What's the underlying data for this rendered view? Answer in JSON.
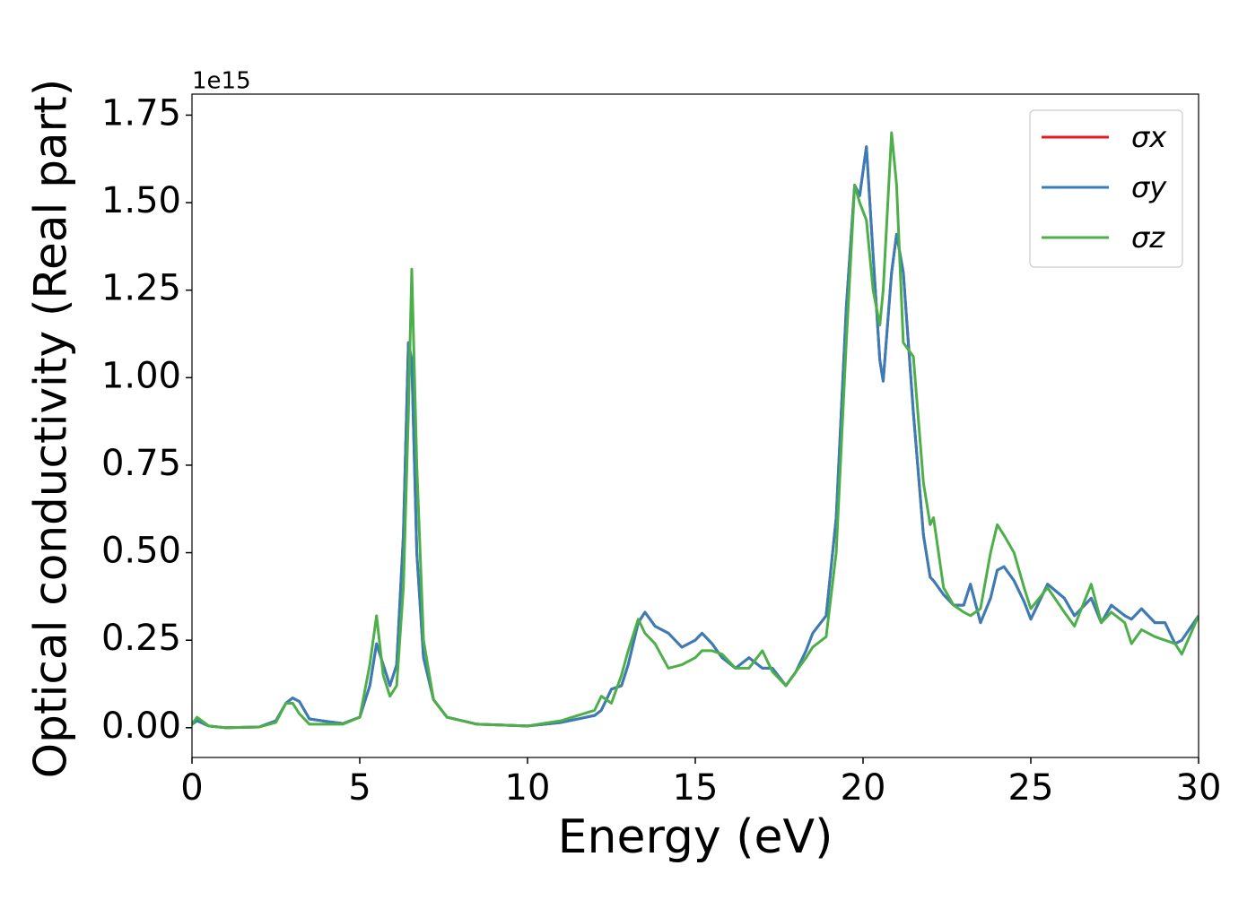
{
  "chart_data": {
    "type": "line",
    "xlabel": "Energy (eV)",
    "ylabel": "Optical conductivity (Real part)",
    "offset_label": "1e15",
    "x": [
      0,
      0.15,
      0.5,
      1,
      2,
      2.5,
      2.8,
      3.0,
      3.2,
      3.5,
      4.0,
      4.5,
      5.0,
      5.3,
      5.5,
      5.7,
      5.9,
      6.1,
      6.3,
      6.45,
      6.55,
      6.7,
      6.9,
      7.2,
      7.6,
      8.5,
      10,
      11,
      11.5,
      12,
      12.2,
      12.5,
      12.8,
      13.0,
      13.3,
      13.5,
      13.8,
      14.2,
      14.6,
      15.0,
      15.2,
      15.5,
      15.8,
      16.2,
      16.6,
      17.0,
      17.3,
      17.7,
      18.0,
      18.3,
      18.5,
      18.9,
      19.2,
      19.5,
      19.75,
      19.9,
      20.1,
      20.3,
      20.5,
      20.6,
      20.85,
      21.0,
      21.2,
      21.5,
      21.8,
      22.0,
      22.1,
      22.4,
      22.7,
      23.0,
      23.2,
      23.5,
      23.8,
      24.0,
      24.2,
      24.5,
      24.8,
      25.0,
      25.5,
      26.0,
      26.3,
      26.8,
      27.1,
      27.4,
      27.8,
      28.0,
      28.3,
      28.7,
      29.0,
      29.3,
      29.5,
      30
    ],
    "series": [
      {
        "name": "σx",
        "color": "#e41a1c",
        "values": [
          0.01,
          0.02,
          0.005,
          0,
          0.002,
          0.02,
          0.07,
          0.085,
          0.075,
          0.025,
          0.018,
          0.012,
          0.03,
          0.12,
          0.24,
          0.18,
          0.12,
          0.18,
          0.55,
          1.1,
          1.05,
          0.5,
          0.2,
          0.08,
          0.03,
          0.01,
          0.005,
          0.015,
          0.025,
          0.035,
          0.05,
          0.11,
          0.12,
          0.18,
          0.3,
          0.33,
          0.29,
          0.27,
          0.23,
          0.25,
          0.27,
          0.24,
          0.2,
          0.17,
          0.2,
          0.17,
          0.17,
          0.12,
          0.16,
          0.22,
          0.27,
          0.32,
          0.6,
          1.2,
          1.55,
          1.52,
          1.66,
          1.35,
          1.05,
          0.99,
          1.3,
          1.41,
          1.3,
          0.9,
          0.55,
          0.43,
          0.42,
          0.38,
          0.35,
          0.35,
          0.41,
          0.3,
          0.37,
          0.45,
          0.46,
          0.42,
          0.36,
          0.31,
          0.41,
          0.37,
          0.32,
          0.37,
          0.3,
          0.35,
          0.32,
          0.31,
          0.34,
          0.3,
          0.3,
          0.24,
          0.25,
          0.32
        ]
      },
      {
        "name": "σy",
        "color": "#377eb8",
        "values": [
          0.01,
          0.02,
          0.005,
          0,
          0.002,
          0.02,
          0.07,
          0.085,
          0.075,
          0.025,
          0.018,
          0.012,
          0.03,
          0.12,
          0.24,
          0.18,
          0.12,
          0.18,
          0.55,
          1.1,
          1.05,
          0.5,
          0.2,
          0.08,
          0.03,
          0.01,
          0.005,
          0.015,
          0.025,
          0.035,
          0.05,
          0.11,
          0.12,
          0.18,
          0.3,
          0.33,
          0.29,
          0.27,
          0.23,
          0.25,
          0.27,
          0.24,
          0.2,
          0.17,
          0.2,
          0.17,
          0.17,
          0.12,
          0.16,
          0.22,
          0.27,
          0.32,
          0.6,
          1.2,
          1.55,
          1.52,
          1.66,
          1.35,
          1.05,
          0.99,
          1.3,
          1.41,
          1.3,
          0.9,
          0.55,
          0.43,
          0.42,
          0.38,
          0.35,
          0.35,
          0.41,
          0.3,
          0.37,
          0.45,
          0.46,
          0.42,
          0.36,
          0.31,
          0.41,
          0.37,
          0.32,
          0.37,
          0.3,
          0.35,
          0.32,
          0.31,
          0.34,
          0.3,
          0.3,
          0.24,
          0.25,
          0.32
        ]
      },
      {
        "name": "σz",
        "color": "#4daf4a",
        "values": [
          0.01,
          0.03,
          0.005,
          0,
          0.002,
          0.015,
          0.07,
          0.07,
          0.04,
          0.01,
          0.01,
          0.01,
          0.03,
          0.18,
          0.32,
          0.15,
          0.09,
          0.12,
          0.4,
          0.9,
          1.31,
          0.75,
          0.25,
          0.08,
          0.03,
          0.01,
          0.005,
          0.02,
          0.035,
          0.05,
          0.09,
          0.07,
          0.15,
          0.22,
          0.31,
          0.27,
          0.24,
          0.17,
          0.18,
          0.2,
          0.22,
          0.22,
          0.21,
          0.17,
          0.17,
          0.22,
          0.16,
          0.12,
          0.16,
          0.2,
          0.23,
          0.26,
          0.5,
          1.1,
          1.55,
          1.5,
          1.45,
          1.25,
          1.15,
          1.25,
          1.7,
          1.55,
          1.1,
          1.06,
          0.7,
          0.58,
          0.6,
          0.4,
          0.35,
          0.33,
          0.32,
          0.34,
          0.5,
          0.58,
          0.55,
          0.5,
          0.4,
          0.34,
          0.4,
          0.33,
          0.29,
          0.41,
          0.3,
          0.33,
          0.3,
          0.24,
          0.28,
          0.26,
          0.25,
          0.24,
          0.21,
          0.32
        ]
      }
    ],
    "xlim": [
      0,
      30
    ],
    "xticks": [
      0,
      5,
      10,
      15,
      20,
      25,
      30
    ],
    "ylim": [
      -0.085,
      1.81
    ],
    "yticks": [
      {
        "value": 0,
        "label": "0.00"
      },
      0.25,
      {
        "value": 0.5,
        "label": "0.50"
      },
      0.75,
      {
        "value": 1,
        "label": "1.00"
      },
      1.25,
      {
        "value": 1.5,
        "label": "1.50"
      },
      1.75
    ],
    "grid": false,
    "legend": "upper right"
  }
}
